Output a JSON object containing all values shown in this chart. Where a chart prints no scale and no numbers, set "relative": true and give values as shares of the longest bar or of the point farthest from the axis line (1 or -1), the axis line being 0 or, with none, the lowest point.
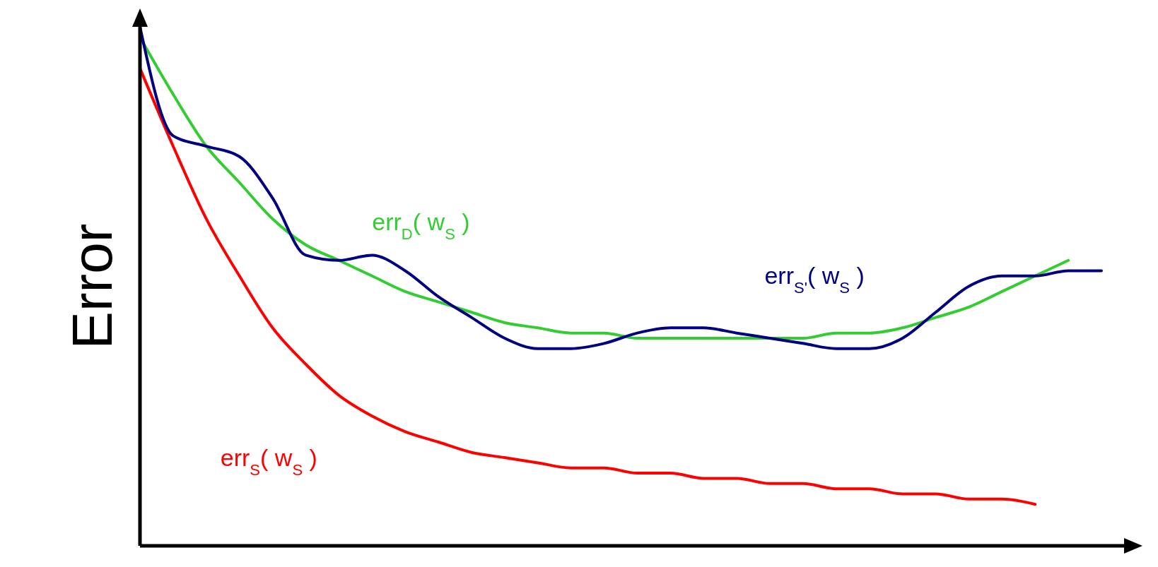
{
  "chart_data": {
    "type": "line",
    "ylabel": "Error",
    "relative": true,
    "categories": [
      null,
      null,
      null,
      null,
      null,
      null,
      null,
      null,
      null,
      null,
      null,
      null,
      null,
      null,
      null,
      null,
      null,
      null,
      null,
      null,
      null,
      null,
      null,
      null,
      null,
      null,
      null,
      null,
      null,
      null
    ],
    "series": [
      {
        "name": "err$_{S}$( w$_{S}$ )",
        "color": "#ff0000",
        "values": [
          0.92,
          0.77,
          0.63,
          0.52,
          0.42,
          0.35,
          0.29,
          0.25,
          0.22,
          0.2,
          0.18,
          0.17,
          0.16,
          0.15,
          0.15,
          0.14,
          0.14,
          0.13,
          0.13,
          0.12,
          0.12,
          0.11,
          0.11,
          0.1,
          0.1,
          0.09,
          0.09,
          0.08,
          null,
          null
        ]
      },
      {
        "name": "err$_{D}$( w$_{S}$ )",
        "color": "#33cc33",
        "values": [
          0.98,
          0.87,
          0.77,
          0.7,
          0.63,
          0.58,
          0.55,
          0.52,
          0.49,
          0.47,
          0.45,
          0.43,
          0.42,
          0.41,
          0.41,
          0.4,
          0.4,
          0.4,
          0.4,
          0.4,
          0.4,
          0.41,
          0.41,
          0.42,
          0.44,
          0.46,
          0.49,
          0.52,
          0.55,
          null
        ]
      },
      {
        "name": "err$_{S'}$( w$_{S}$ )",
        "color": "#000080",
        "values": [
          1.0,
          0.79,
          0.77,
          0.75,
          0.67,
          0.56,
          0.55,
          0.56,
          0.53,
          0.48,
          0.44,
          0.4,
          0.38,
          0.38,
          0.39,
          0.41,
          0.42,
          0.42,
          0.41,
          0.4,
          0.39,
          0.38,
          0.38,
          0.4,
          0.45,
          0.5,
          0.52,
          0.52,
          0.53,
          0.53
        ]
      }
    ]
  }
}
